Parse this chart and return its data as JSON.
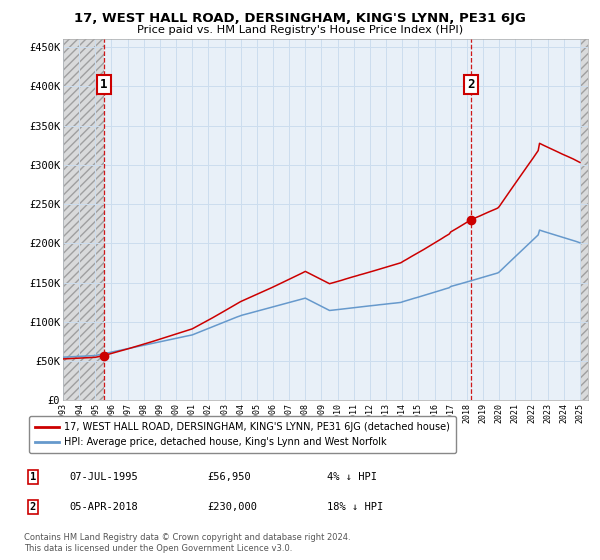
{
  "title1": "17, WEST HALL ROAD, DERSINGHAM, KING'S LYNN, PE31 6JG",
  "title2": "Price paid vs. HM Land Registry's House Price Index (HPI)",
  "xlim_start": 1993.0,
  "xlim_end": 2025.5,
  "ylim": [
    0,
    460000
  ],
  "yticks": [
    0,
    50000,
    100000,
    150000,
    200000,
    250000,
    300000,
    350000,
    400000,
    450000
  ],
  "ytick_labels": [
    "£0",
    "£50K",
    "£100K",
    "£150K",
    "£200K",
    "£250K",
    "£300K",
    "£350K",
    "£400K",
    "£450K"
  ],
  "xticks": [
    1993,
    1994,
    1995,
    1996,
    1997,
    1998,
    1999,
    2000,
    2001,
    2002,
    2003,
    2004,
    2005,
    2006,
    2007,
    2008,
    2009,
    2010,
    2011,
    2012,
    2013,
    2014,
    2015,
    2016,
    2017,
    2018,
    2019,
    2020,
    2021,
    2022,
    2023,
    2024,
    2025
  ],
  "sale1_x": 1995.52,
  "sale1_y": 56950,
  "sale2_x": 2018.27,
  "sale2_y": 230000,
  "line_color_red": "#cc0000",
  "line_color_blue": "#6699cc",
  "dot_color": "#cc0000",
  "marker_box_color": "#cc0000",
  "grid_color": "#ccddee",
  "plot_bg": "#e8f0f8",
  "hatch_bg": "#d8d8d8",
  "legend1_text": "17, WEST HALL ROAD, DERSINGHAM, KING'S LYNN, PE31 6JG (detached house)",
  "legend2_text": "HPI: Average price, detached house, King's Lynn and West Norfolk",
  "ann1_date": "07-JUL-1995",
  "ann1_price": "£56,950",
  "ann1_pct": "4% ↓ HPI",
  "ann2_date": "05-APR-2018",
  "ann2_price": "£230,000",
  "ann2_pct": "18% ↓ HPI",
  "footnote": "Contains HM Land Registry data © Crown copyright and database right 2024.\nThis data is licensed under the Open Government Licence v3.0."
}
